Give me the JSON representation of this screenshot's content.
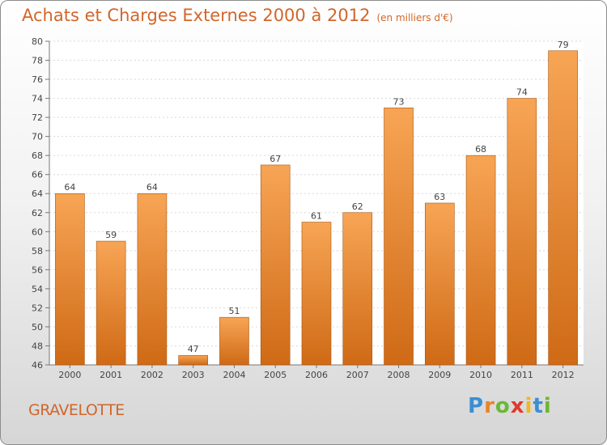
{
  "chart_data": {
    "type": "bar",
    "title": "Achats et Charges Externes 2000 à 2012",
    "subtitle": "(en milliers d'€)",
    "categories": [
      "2000",
      "2001",
      "2002",
      "2003",
      "2004",
      "2005",
      "2006",
      "2007",
      "2008",
      "2009",
      "2010",
      "2011",
      "2012"
    ],
    "values": [
      64,
      59,
      64,
      47,
      51,
      67,
      61,
      62,
      73,
      63,
      68,
      74,
      79
    ],
    "ylim": [
      46,
      80
    ],
    "yticks": [
      46,
      48,
      50,
      52,
      54,
      56,
      58,
      60,
      62,
      64,
      66,
      68,
      70,
      72,
      74,
      76,
      78,
      80
    ],
    "grid": true,
    "xlabel": "",
    "ylabel": "",
    "bar_color": "#f09440"
  },
  "footer": {
    "place": "GRAVELOTTE",
    "logo_letters": [
      "P",
      "r",
      "o",
      "x",
      "i",
      "t",
      "i"
    ],
    "logo_colors": [
      "#3a8fd4",
      "#e8842a",
      "#6ab834",
      "#e03a2a",
      "#f0b81a",
      "#3a8fd4",
      "#6ab834"
    ]
  }
}
